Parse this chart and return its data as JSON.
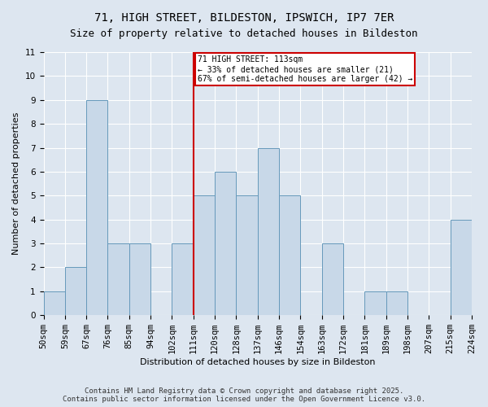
{
  "title": "71, HIGH STREET, BILDESTON, IPSWICH, IP7 7ER",
  "subtitle": "Size of property relative to detached houses in Bildeston",
  "xlabel": "Distribution of detached houses by size in Bildeston",
  "ylabel": "Number of detached properties",
  "bins": [
    "50sqm",
    "59sqm",
    "67sqm",
    "76sqm",
    "85sqm",
    "94sqm",
    "102sqm",
    "111sqm",
    "120sqm",
    "128sqm",
    "137sqm",
    "146sqm",
    "154sqm",
    "163sqm",
    "172sqm",
    "181sqm",
    "189sqm",
    "198sqm",
    "207sqm",
    "215sqm",
    "224sqm"
  ],
  "values": [
    1,
    2,
    9,
    3,
    3,
    0,
    3,
    5,
    6,
    5,
    7,
    5,
    0,
    3,
    0,
    1,
    1,
    0,
    0,
    4
  ],
  "bar_color": "#c8d8e8",
  "bar_edge_color": "#6699bb",
  "background_color": "#dde6f0",
  "grid_color": "#ffffff",
  "vline_color": "#cc0000",
  "annotation_text": "71 HIGH STREET: 113sqm\n← 33% of detached houses are smaller (21)\n67% of semi-detached houses are larger (42) →",
  "annotation_box_color": "#ffffff",
  "annotation_box_edge_color": "#cc0000",
  "ylim": [
    0,
    11
  ],
  "yticks": [
    0,
    1,
    2,
    3,
    4,
    5,
    6,
    7,
    8,
    9,
    10,
    11
  ],
  "footer": "Contains HM Land Registry data © Crown copyright and database right 2025.\nContains public sector information licensed under the Open Government Licence v3.0.",
  "title_fontsize": 10,
  "subtitle_fontsize": 9,
  "axis_label_fontsize": 8,
  "tick_fontsize": 7.5,
  "footer_fontsize": 6.5
}
